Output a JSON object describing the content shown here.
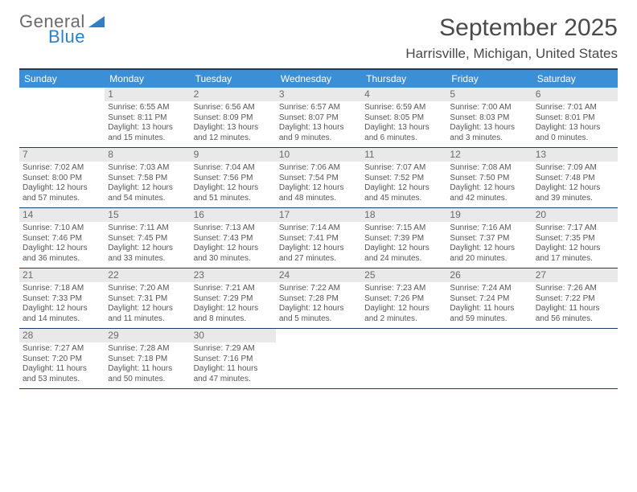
{
  "logo": {
    "word1": "General",
    "word2": "Blue"
  },
  "title": "September 2025",
  "location": "Harrisville, Michigan, United States",
  "colors": {
    "header_bg": "#3b8fd6",
    "header_text": "#ffffff",
    "border": "#1a3a6a",
    "daynum_bg": "#e9e9e9",
    "text": "#555555",
    "logo_gray": "#6a6a6a",
    "logo_blue": "#2f7fc2"
  },
  "day_names": [
    "Sunday",
    "Monday",
    "Tuesday",
    "Wednesday",
    "Thursday",
    "Friday",
    "Saturday"
  ],
  "weeks": [
    [
      {
        "n": "",
        "sr": "",
        "ss": "",
        "dl": ""
      },
      {
        "n": "1",
        "sr": "6:55 AM",
        "ss": "8:11 PM",
        "dl": "13 hours and 15 minutes."
      },
      {
        "n": "2",
        "sr": "6:56 AM",
        "ss": "8:09 PM",
        "dl": "13 hours and 12 minutes."
      },
      {
        "n": "3",
        "sr": "6:57 AM",
        "ss": "8:07 PM",
        "dl": "13 hours and 9 minutes."
      },
      {
        "n": "4",
        "sr": "6:59 AM",
        "ss": "8:05 PM",
        "dl": "13 hours and 6 minutes."
      },
      {
        "n": "5",
        "sr": "7:00 AM",
        "ss": "8:03 PM",
        "dl": "13 hours and 3 minutes."
      },
      {
        "n": "6",
        "sr": "7:01 AM",
        "ss": "8:01 PM",
        "dl": "13 hours and 0 minutes."
      }
    ],
    [
      {
        "n": "7",
        "sr": "7:02 AM",
        "ss": "8:00 PM",
        "dl": "12 hours and 57 minutes."
      },
      {
        "n": "8",
        "sr": "7:03 AM",
        "ss": "7:58 PM",
        "dl": "12 hours and 54 minutes."
      },
      {
        "n": "9",
        "sr": "7:04 AM",
        "ss": "7:56 PM",
        "dl": "12 hours and 51 minutes."
      },
      {
        "n": "10",
        "sr": "7:06 AM",
        "ss": "7:54 PM",
        "dl": "12 hours and 48 minutes."
      },
      {
        "n": "11",
        "sr": "7:07 AM",
        "ss": "7:52 PM",
        "dl": "12 hours and 45 minutes."
      },
      {
        "n": "12",
        "sr": "7:08 AM",
        "ss": "7:50 PM",
        "dl": "12 hours and 42 minutes."
      },
      {
        "n": "13",
        "sr": "7:09 AM",
        "ss": "7:48 PM",
        "dl": "12 hours and 39 minutes."
      }
    ],
    [
      {
        "n": "14",
        "sr": "7:10 AM",
        "ss": "7:46 PM",
        "dl": "12 hours and 36 minutes."
      },
      {
        "n": "15",
        "sr": "7:11 AM",
        "ss": "7:45 PM",
        "dl": "12 hours and 33 minutes."
      },
      {
        "n": "16",
        "sr": "7:13 AM",
        "ss": "7:43 PM",
        "dl": "12 hours and 30 minutes."
      },
      {
        "n": "17",
        "sr": "7:14 AM",
        "ss": "7:41 PM",
        "dl": "12 hours and 27 minutes."
      },
      {
        "n": "18",
        "sr": "7:15 AM",
        "ss": "7:39 PM",
        "dl": "12 hours and 24 minutes."
      },
      {
        "n": "19",
        "sr": "7:16 AM",
        "ss": "7:37 PM",
        "dl": "12 hours and 20 minutes."
      },
      {
        "n": "20",
        "sr": "7:17 AM",
        "ss": "7:35 PM",
        "dl": "12 hours and 17 minutes."
      }
    ],
    [
      {
        "n": "21",
        "sr": "7:18 AM",
        "ss": "7:33 PM",
        "dl": "12 hours and 14 minutes."
      },
      {
        "n": "22",
        "sr": "7:20 AM",
        "ss": "7:31 PM",
        "dl": "12 hours and 11 minutes."
      },
      {
        "n": "23",
        "sr": "7:21 AM",
        "ss": "7:29 PM",
        "dl": "12 hours and 8 minutes."
      },
      {
        "n": "24",
        "sr": "7:22 AM",
        "ss": "7:28 PM",
        "dl": "12 hours and 5 minutes."
      },
      {
        "n": "25",
        "sr": "7:23 AM",
        "ss": "7:26 PM",
        "dl": "12 hours and 2 minutes."
      },
      {
        "n": "26",
        "sr": "7:24 AM",
        "ss": "7:24 PM",
        "dl": "11 hours and 59 minutes."
      },
      {
        "n": "27",
        "sr": "7:26 AM",
        "ss": "7:22 PM",
        "dl": "11 hours and 56 minutes."
      }
    ],
    [
      {
        "n": "28",
        "sr": "7:27 AM",
        "ss": "7:20 PM",
        "dl": "11 hours and 53 minutes."
      },
      {
        "n": "29",
        "sr": "7:28 AM",
        "ss": "7:18 PM",
        "dl": "11 hours and 50 minutes."
      },
      {
        "n": "30",
        "sr": "7:29 AM",
        "ss": "7:16 PM",
        "dl": "11 hours and 47 minutes."
      },
      {
        "n": "",
        "sr": "",
        "ss": "",
        "dl": ""
      },
      {
        "n": "",
        "sr": "",
        "ss": "",
        "dl": ""
      },
      {
        "n": "",
        "sr": "",
        "ss": "",
        "dl": ""
      },
      {
        "n": "",
        "sr": "",
        "ss": "",
        "dl": ""
      }
    ]
  ],
  "labels": {
    "sunrise": "Sunrise:",
    "sunset": "Sunset:",
    "daylight": "Daylight:"
  }
}
